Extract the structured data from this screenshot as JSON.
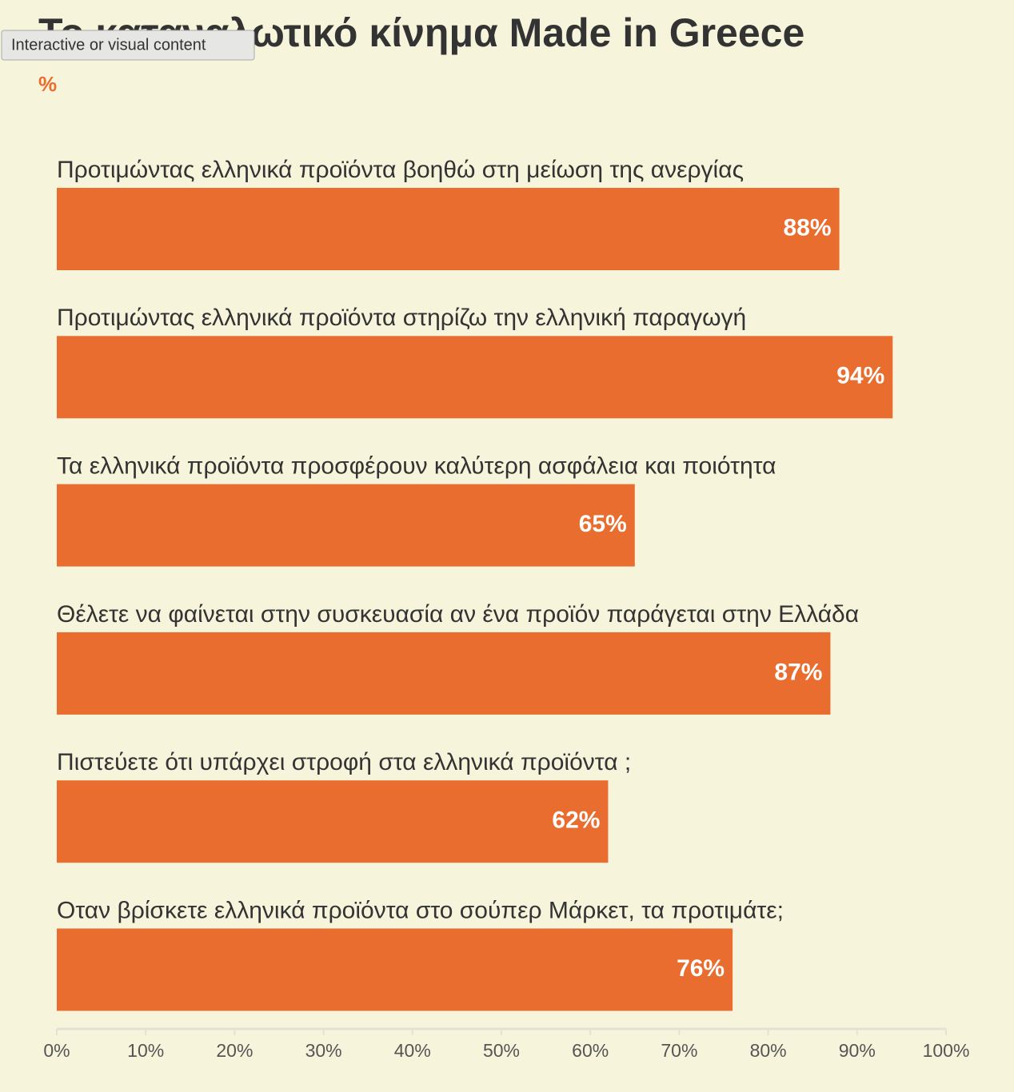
{
  "tooltip": "Interactive or visual content",
  "chart_data": {
    "type": "barh",
    "title": "Το καταναλωτικό κίνημα Made in Greece",
    "subtitle": "%",
    "categories": [
      "Προτιμώντας ελληνικά προϊόντα βοηθώ στη μείωση της ανεργίας",
      "Προτιμώντας ελληνικά προϊόντα στηρίζω την ελληνική παραγωγή",
      "Τα ελληνικά προϊόντα προσφέρουν καλύτερη ασφάλεια και ποιότητα",
      "Θέλετε να φαίνεται στην συσκευασία αν ένα προϊόν παράγεται στην Ελλάδα",
      "Πιστεύετε ότι υπάρχει στροφή στα ελληνικά προϊόντα ;",
      "Οταν βρίσκετε ελληνικά προϊόντα στο σούπερ Μάρκετ, τα προτιμάτε;"
    ],
    "values": [
      88,
      94,
      65,
      87,
      62,
      76
    ],
    "value_labels": [
      "88%",
      "94%",
      "65%",
      "87%",
      "62%",
      "76%"
    ],
    "color": "#e96d2f",
    "xlim": [
      0,
      100
    ],
    "xticks": [
      {
        "value": 0,
        "label": "0%"
      },
      {
        "value": 10,
        "label": "10%"
      },
      {
        "value": 20,
        "label": "20%"
      },
      {
        "value": 30,
        "label": "30%"
      },
      {
        "value": 40,
        "label": "40%"
      },
      {
        "value": 50,
        "label": "50%"
      },
      {
        "value": 60,
        "label": "60%"
      },
      {
        "value": 70,
        "label": "70%"
      },
      {
        "value": 80,
        "label": "80%"
      },
      {
        "value": 90,
        "label": "90%"
      },
      {
        "value": 100,
        "label": "100%"
      }
    ]
  }
}
